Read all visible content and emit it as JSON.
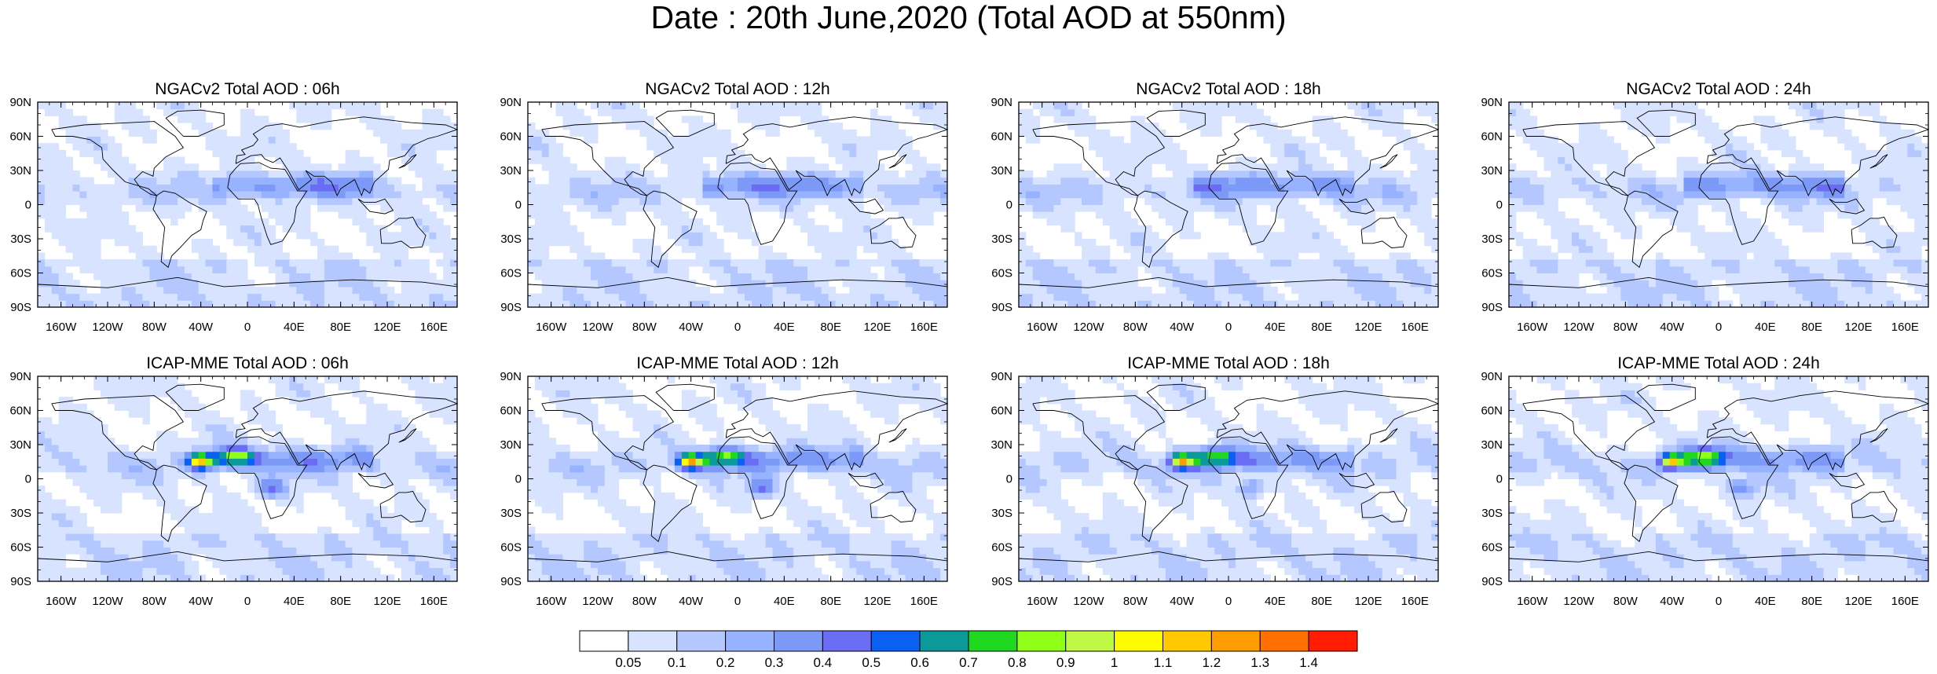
{
  "title": "Date : 20th June,2020 (Total AOD at 550nm)",
  "lat_ticks": [
    "90N",
    "60N",
    "30N",
    "0",
    "30S",
    "60S",
    "90S"
  ],
  "lon_ticks": [
    "160W",
    "120W",
    "80W",
    "40W",
    "0",
    "40E",
    "80E",
    "120E",
    "160E"
  ],
  "panels": [
    {
      "title": "NGACv2 Total AOD : 06h"
    },
    {
      "title": "NGACv2 Total AOD : 12h"
    },
    {
      "title": "NGACv2 Total AOD : 18h"
    },
    {
      "title": "NGACv2 Total AOD : 24h"
    },
    {
      "title": "ICAP-MME Total AOD : 06h"
    },
    {
      "title": "ICAP-MME Total AOD : 12h"
    },
    {
      "title": "ICAP-MME Total AOD : 18h"
    },
    {
      "title": "ICAP-MME Total AOD : 24h"
    }
  ],
  "colorbar": {
    "labels": [
      "0.05",
      "0.1",
      "0.2",
      "0.3",
      "0.4",
      "0.5",
      "0.6",
      "0.7",
      "0.8",
      "0.9",
      "1",
      "1.1",
      "1.2",
      "1.3",
      "1.4"
    ],
    "colors": [
      "#ffffff",
      "#d7e3ff",
      "#b4c8ff",
      "#97b2ff",
      "#7d99f7",
      "#6a6cf4",
      "#0960f3",
      "#0b9999",
      "#21d821",
      "#8fff17",
      "#c0f944",
      "#fffc00",
      "#ffc800",
      "#ff9c00",
      "#ff7000",
      "#ff1c00"
    ]
  }
}
